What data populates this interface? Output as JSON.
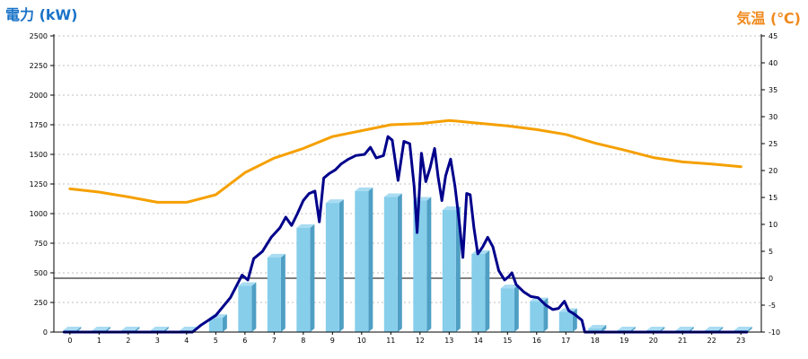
{
  "chart_data": {
    "type": "bar",
    "left_axis_title": "電力 (kW)",
    "right_axis_title": "気温 (℃)",
    "colors": {
      "left_title": "#1a73c8",
      "right_title": "#f08a1e",
      "bar_front": "#87ceeb",
      "bar_side": "#4f9fc4",
      "bar_top": "#a9dcf2",
      "power_line": "#00008b",
      "temp_line": "#f5a000",
      "grid": "#bfbfbf"
    },
    "grid": true,
    "categories": [
      "0",
      "1",
      "2",
      "3",
      "4",
      "5",
      "6",
      "7",
      "8",
      "9",
      "10",
      "11",
      "12",
      "13",
      "14",
      "15",
      "16",
      "17",
      "18",
      "19",
      "20",
      "21",
      "22",
      "23"
    ],
    "y_left": {
      "min": 0,
      "max": 2500,
      "ticks": [
        0,
        250,
        500,
        750,
        1000,
        1250,
        1500,
        1750,
        2000,
        2250,
        2500
      ]
    },
    "y_right": {
      "min": -10,
      "max": 45,
      "ticks": [
        -10,
        -5,
        0,
        5,
        10,
        15,
        20,
        25,
        30,
        35,
        40,
        45
      ]
    },
    "series": [
      {
        "type": "bar",
        "axis": "left",
        "values": [
          15,
          15,
          15,
          15,
          15,
          120,
          390,
          630,
          880,
          1090,
          1190,
          1140,
          1110,
          1030,
          660,
          370,
          260,
          170,
          30,
          15,
          15,
          15,
          15,
          15
        ]
      },
      {
        "type": "line",
        "axis": "left",
        "color_key": "power_line",
        "points": [
          [
            -0.2,
            0
          ],
          [
            4.2,
            0
          ],
          [
            4.5,
            60
          ],
          [
            5,
            140
          ],
          [
            5.5,
            290
          ],
          [
            5.9,
            480
          ],
          [
            6.1,
            440
          ],
          [
            6.3,
            620
          ],
          [
            6.6,
            680
          ],
          [
            6.9,
            800
          ],
          [
            7.2,
            880
          ],
          [
            7.4,
            970
          ],
          [
            7.6,
            900
          ],
          [
            7.8,
            1000
          ],
          [
            8,
            1110
          ],
          [
            8.2,
            1170
          ],
          [
            8.4,
            1190
          ],
          [
            8.55,
            930
          ],
          [
            8.7,
            1300
          ],
          [
            8.9,
            1340
          ],
          [
            9.1,
            1370
          ],
          [
            9.3,
            1420
          ],
          [
            9.55,
            1460
          ],
          [
            9.8,
            1490
          ],
          [
            10.1,
            1500
          ],
          [
            10.3,
            1560
          ],
          [
            10.5,
            1470
          ],
          [
            10.75,
            1490
          ],
          [
            10.9,
            1650
          ],
          [
            11.05,
            1620
          ],
          [
            11.25,
            1280
          ],
          [
            11.45,
            1610
          ],
          [
            11.65,
            1590
          ],
          [
            11.8,
            1230
          ],
          [
            11.9,
            840
          ],
          [
            12.05,
            1510
          ],
          [
            12.2,
            1270
          ],
          [
            12.35,
            1390
          ],
          [
            12.5,
            1550
          ],
          [
            12.62,
            1310
          ],
          [
            12.75,
            1110
          ],
          [
            12.88,
            1320
          ],
          [
            13.05,
            1460
          ],
          [
            13.2,
            1230
          ],
          [
            13.35,
            920
          ],
          [
            13.47,
            630
          ],
          [
            13.6,
            1170
          ],
          [
            13.72,
            1160
          ],
          [
            13.85,
            880
          ],
          [
            13.98,
            660
          ],
          [
            14.15,
            720
          ],
          [
            14.32,
            800
          ],
          [
            14.5,
            720
          ],
          [
            14.7,
            520
          ],
          [
            14.9,
            440
          ],
          [
            15.05,
            470
          ],
          [
            15.15,
            500
          ],
          [
            15.3,
            400
          ],
          [
            15.55,
            340
          ],
          [
            15.8,
            300
          ],
          [
            16.05,
            290
          ],
          [
            16.3,
            230
          ],
          [
            16.55,
            190
          ],
          [
            16.75,
            200
          ],
          [
            16.95,
            260
          ],
          [
            17.1,
            180
          ],
          [
            17.3,
            150
          ],
          [
            17.55,
            100
          ],
          [
            17.65,
            0
          ],
          [
            23.2,
            0
          ]
        ]
      },
      {
        "type": "line",
        "axis": "right",
        "color_key": "temp_line",
        "points": [
          [
            0,
            16.6
          ],
          [
            1,
            16
          ],
          [
            2,
            15.1
          ],
          [
            3,
            14.1
          ],
          [
            4,
            14.1
          ],
          [
            5,
            15.5
          ],
          [
            6,
            19.6
          ],
          [
            7,
            22.3
          ],
          [
            8,
            24.1
          ],
          [
            9,
            26.3
          ],
          [
            10,
            27.4
          ],
          [
            11,
            28.5
          ],
          [
            12,
            28.7
          ],
          [
            13,
            29.3
          ],
          [
            14,
            28.8
          ],
          [
            15,
            28.3
          ],
          [
            16,
            27.6
          ],
          [
            17,
            26.7
          ],
          [
            18,
            25.1
          ],
          [
            19,
            23.8
          ],
          [
            20,
            22.4
          ],
          [
            21,
            21.6
          ],
          [
            22,
            21.2
          ],
          [
            23,
            20.7
          ]
        ]
      }
    ]
  }
}
